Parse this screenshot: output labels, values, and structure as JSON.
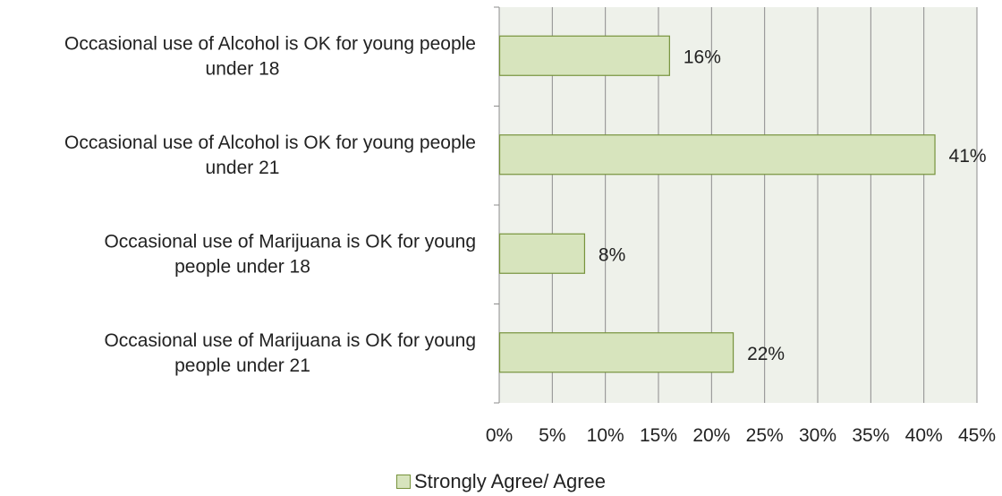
{
  "chart_data": {
    "type": "bar",
    "orientation": "horizontal",
    "title": "",
    "xlabel": "",
    "ylabel": "",
    "categories": [
      [
        "Occasional use of Alcohol is OK for young people",
        "under 18"
      ],
      [
        "Occasional use of Alcohol is OK for young people",
        "under 21"
      ],
      [
        "Occasional use of Marijuana is OK for young",
        "people under 18"
      ],
      [
        "Occasional use of Marijuana is OK for young",
        "people under 21"
      ]
    ],
    "series": [
      {
        "name": "Strongly Agree/ Agree",
        "values": [
          16,
          41,
          8,
          22
        ],
        "data_labels": [
          "16%",
          "41%",
          "8%",
          "22%"
        ]
      }
    ],
    "xlim": [
      0,
      45
    ],
    "x_ticks": [
      "0%",
      "5%",
      "10%",
      "15%",
      "20%",
      "25%",
      "30%",
      "35%",
      "40%",
      "45%"
    ],
    "grid": "vertical",
    "legend_position": "bottom",
    "colors": {
      "bar_fill": "#d7e4bd",
      "bar_border": "#77933c",
      "plot_background": "#eef1ea",
      "gridline": "#8c8c8c"
    }
  }
}
